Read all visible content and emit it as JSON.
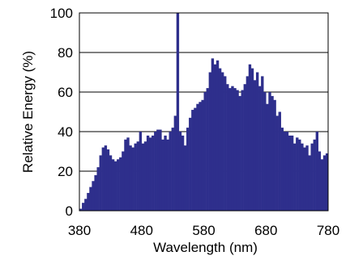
{
  "chart_data": {
    "type": "bar",
    "title": "",
    "xlabel": "Wavelength (nm)",
    "ylabel": "Relative Energy (%)",
    "xlim": [
      380,
      780
    ],
    "ylim": [
      0,
      100
    ],
    "xticks": [
      380,
      480,
      580,
      680,
      780
    ],
    "yticks": [
      0,
      20,
      40,
      60,
      80,
      100
    ],
    "grid": "horizontal",
    "bar_color": "#2e2f8c",
    "bin_width_nm": 4,
    "x": [
      380,
      384,
      388,
      392,
      396,
      400,
      404,
      408,
      412,
      416,
      420,
      424,
      428,
      432,
      436,
      440,
      444,
      448,
      452,
      456,
      460,
      464,
      468,
      472,
      476,
      480,
      484,
      488,
      492,
      496,
      500,
      504,
      508,
      512,
      516,
      520,
      524,
      528,
      532,
      536,
      540,
      544,
      548,
      552,
      556,
      560,
      564,
      568,
      572,
      576,
      580,
      584,
      588,
      592,
      596,
      600,
      604,
      608,
      612,
      616,
      620,
      624,
      628,
      632,
      636,
      640,
      644,
      648,
      652,
      656,
      660,
      664,
      668,
      672,
      676,
      680,
      684,
      688,
      692,
      696,
      700,
      704,
      708,
      712,
      716,
      720,
      724,
      728,
      732,
      736,
      740,
      744,
      748,
      752,
      756,
      760,
      764,
      768,
      772,
      776
    ],
    "values": [
      1,
      4,
      6,
      9,
      12,
      15,
      18,
      22,
      28,
      32,
      33,
      31,
      28,
      26,
      25,
      26,
      27,
      30,
      36,
      37,
      33,
      32,
      34,
      35,
      40,
      34,
      35,
      38,
      37,
      38,
      40,
      41,
      41,
      36,
      38,
      36,
      40,
      42,
      48,
      100,
      40,
      38,
      33,
      42,
      47,
      51,
      52,
      54,
      55,
      56,
      60,
      62,
      70,
      77,
      74,
      76,
      72,
      70,
      68,
      64,
      62,
      63,
      62,
      61,
      58,
      61,
      64,
      68,
      74,
      72,
      66,
      70,
      63,
      68,
      60,
      54,
      60,
      58,
      56,
      48,
      50,
      42,
      40,
      40,
      38,
      38,
      34,
      37,
      36,
      34,
      32,
      33,
      28,
      34,
      36,
      40,
      30,
      26,
      28,
      29
    ]
  }
}
